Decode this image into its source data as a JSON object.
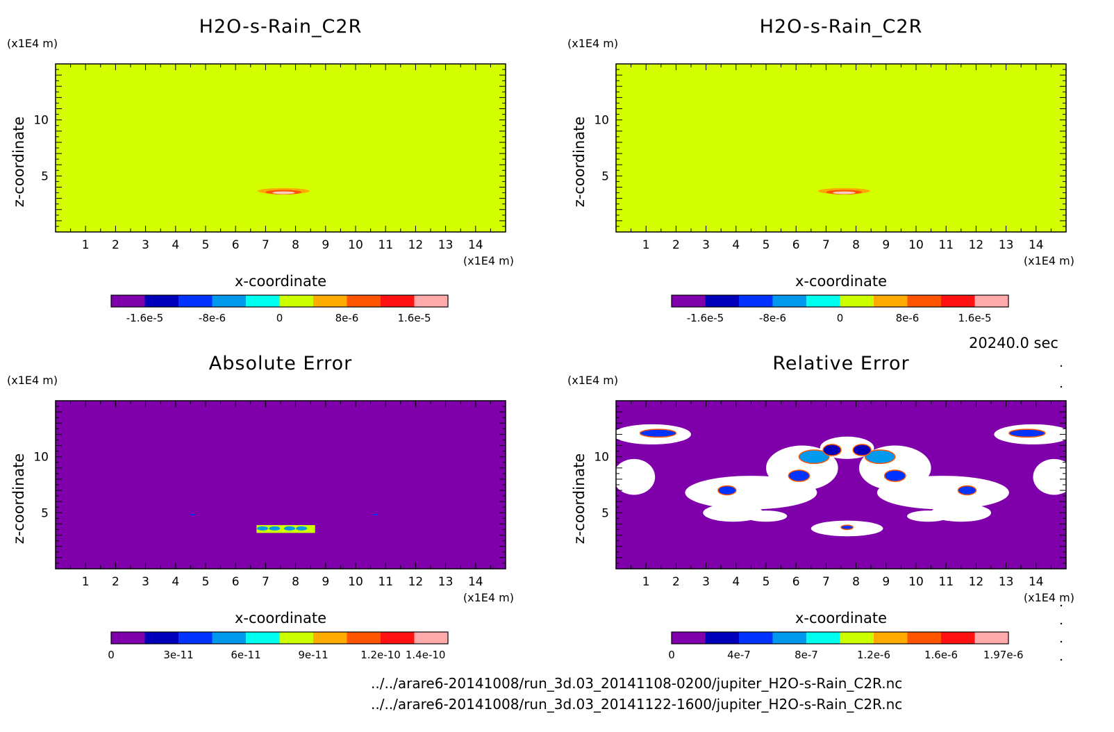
{
  "time_label": "20240.0 sec",
  "files": [
    "../../arare6-20141008/run_3d.03_20141108-0200/jupiter_H2O-s-Rain_C2R.nc",
    "../../arare6-20141008/run_3d.03_20141122-1600/jupiter_H2O-s-Rain_C2R.nc"
  ],
  "colors": {
    "levels": [
      "#7f00aa",
      "#0000bb",
      "#0033ff",
      "#0099ee",
      "#00ffee",
      "#ccff00",
      "#ffaa00",
      "#ff5500",
      "#ff1111",
      "#ffaaaa"
    ],
    "background_field": "#d4ff00",
    "error_background": "#7f00aa"
  },
  "chart_data": [
    {
      "type": "heatmap",
      "title": "H2O-s-Rain_C2R",
      "xlabel": "x-coordinate",
      "ylabel": "z-coordinate",
      "x_unit": "(x1E4 m)",
      "y_unit": "(x1E4 m)",
      "xlim": [
        0,
        15
      ],
      "ylim": [
        0,
        15
      ],
      "x_ticks": [
        "1",
        "2",
        "3",
        "4",
        "5",
        "6",
        "7",
        "8",
        "9",
        "10",
        "11",
        "12",
        "13",
        "14"
      ],
      "y_ticks": [
        "5",
        "10"
      ],
      "colorbar_labels": [
        "-1.6e-5",
        "-8e-6",
        "0",
        "8e-6",
        "1.6e-5"
      ],
      "colorbar_min": -2e-05,
      "colorbar_max": 2e-05
    },
    {
      "type": "heatmap",
      "title": "H2O-s-Rain_C2R",
      "xlabel": "x-coordinate",
      "ylabel": "z-coordinate",
      "x_unit": "(x1E4 m)",
      "y_unit": "(x1E4 m)",
      "xlim": [
        0,
        15
      ],
      "ylim": [
        0,
        15
      ],
      "x_ticks": [
        "1",
        "2",
        "3",
        "4",
        "5",
        "6",
        "7",
        "8",
        "9",
        "10",
        "11",
        "12",
        "13",
        "14"
      ],
      "y_ticks": [
        "5",
        "10"
      ],
      "colorbar_labels": [
        "-1.6e-5",
        "-8e-6",
        "0",
        "8e-6",
        "1.6e-5"
      ],
      "colorbar_min": -2e-05,
      "colorbar_max": 2e-05
    },
    {
      "type": "heatmap",
      "title": "Absolute Error",
      "xlabel": "x-coordinate",
      "ylabel": "z-coordinate",
      "x_unit": "(x1E4 m)",
      "y_unit": "(x1E4 m)",
      "xlim": [
        0,
        15
      ],
      "ylim": [
        0,
        15
      ],
      "x_ticks": [
        "1",
        "2",
        "3",
        "4",
        "5",
        "6",
        "7",
        "8",
        "9",
        "10",
        "11",
        "12",
        "13",
        "14"
      ],
      "y_ticks": [
        "5",
        "10"
      ],
      "colorbar_labels": [
        "0",
        "3e-11",
        "6e-11",
        "9e-11",
        "1.2e-10",
        "1.4e-10"
      ],
      "colorbar_min": 0,
      "colorbar_max": 1.5e-10
    },
    {
      "type": "heatmap",
      "title": "Relative Error",
      "xlabel": "x-coordinate",
      "ylabel": "z-coordinate",
      "x_unit": "(x1E4 m)",
      "y_unit": "(x1E4 m)",
      "xlim": [
        0,
        15
      ],
      "ylim": [
        0,
        15
      ],
      "x_ticks": [
        "1",
        "2",
        "3",
        "4",
        "5",
        "6",
        "7",
        "8",
        "9",
        "10",
        "11",
        "12",
        "13",
        "14"
      ],
      "y_ticks": [
        "5",
        "10"
      ],
      "colorbar_labels": [
        "0",
        "4e-7",
        "8e-7",
        "1.2e-6",
        "1.6e-6",
        "1.97e-6"
      ],
      "colorbar_min": 0,
      "colorbar_max": 2e-06
    }
  ]
}
